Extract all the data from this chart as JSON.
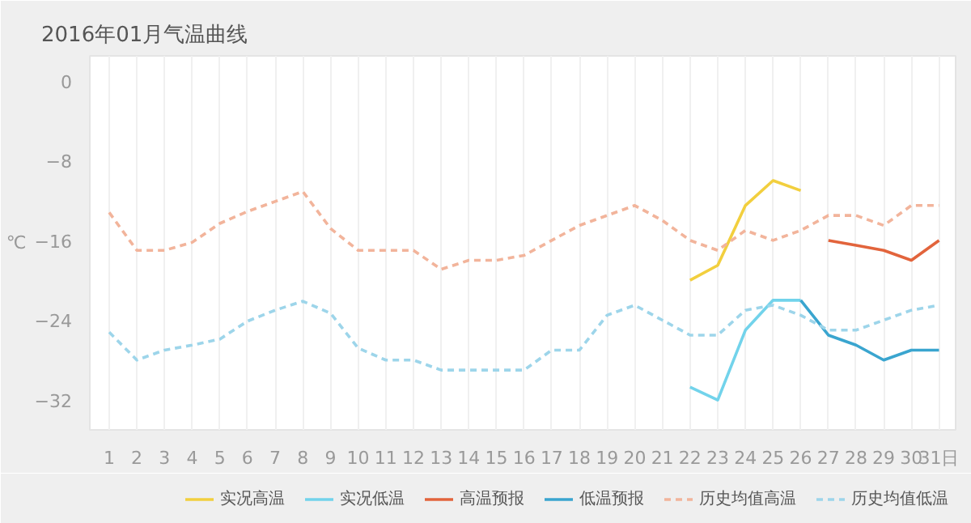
{
  "chart_data": {
    "type": "line",
    "title": "2016年01月气温曲线",
    "ylabel": "℃",
    "xlim": [
      0.3,
      31.6
    ],
    "ylim": [
      -35,
      2.5
    ],
    "xticks": [
      1,
      2,
      3,
      4,
      5,
      6,
      7,
      8,
      9,
      10,
      11,
      12,
      13,
      14,
      15,
      16,
      17,
      18,
      19,
      20,
      21,
      22,
      23,
      24,
      25,
      26,
      27,
      28,
      29,
      30,
      {
        "value": 31,
        "label": "31日"
      }
    ],
    "yticks": [
      0,
      -8,
      -16,
      -24,
      -32
    ],
    "grid": "x",
    "legend": "bottom",
    "marker": "none",
    "series": [
      {
        "name": "实况高温",
        "color": "#f2cf3e",
        "line_style": "solid",
        "x": [
          22,
          23,
          24,
          25,
          26
        ],
        "values": [
          -20,
          -18.5,
          -12.5,
          -10,
          -11
        ]
      },
      {
        "name": "实况低温",
        "color": "#72d3eb",
        "line_style": "solid",
        "x": [
          22,
          23,
          24,
          25,
          26
        ],
        "values": [
          -30.7,
          -32,
          -25,
          -22,
          -22
        ]
      },
      {
        "name": "高温预报",
        "color": "#e2643c",
        "line_style": "solid",
        "x": [
          27,
          28,
          29,
          30,
          31
        ],
        "values": [
          -16,
          -16.5,
          -17,
          -18,
          -16
        ]
      },
      {
        "name": "低温预报",
        "color": "#3aa5cf",
        "line_style": "solid",
        "x": [
          26,
          27,
          28,
          29,
          30,
          31
        ],
        "values": [
          -22,
          -25.5,
          -26.5,
          -28,
          -27,
          -27
        ]
      },
      {
        "name": "历史均值高温",
        "color": "#f2b49b",
        "line_style": "dashed",
        "x": [
          1,
          2,
          3,
          4,
          5,
          6,
          7,
          8,
          9,
          10,
          11,
          12,
          13,
          14,
          15,
          16,
          17,
          18,
          19,
          20,
          21,
          22,
          23,
          24,
          25,
          26,
          27,
          28,
          29,
          30,
          31
        ],
        "values": [
          -13.2,
          -17,
          -17,
          -16.2,
          -14.3,
          -13.1,
          -12.1,
          -11.1,
          -14.8,
          -17,
          -17,
          -17,
          -18.9,
          -18,
          -18,
          -17.5,
          -16,
          -14.5,
          -13.5,
          -12.5,
          -14,
          -16,
          -17,
          -15,
          -16,
          -15,
          -13.5,
          -13.5,
          -14.5,
          -12.5,
          -12.5
        ]
      },
      {
        "name": "历史均值低温",
        "color": "#9dd5ea",
        "line_style": "dashed",
        "x": [
          1,
          2,
          3,
          4,
          5,
          6,
          7,
          8,
          9,
          10,
          11,
          12,
          13,
          14,
          15,
          16,
          17,
          18,
          19,
          20,
          21,
          22,
          23,
          24,
          25,
          26,
          27,
          28,
          29,
          30,
          31
        ],
        "values": [
          -25.2,
          -28,
          -27,
          -26.5,
          -25.9,
          -24.1,
          -23,
          -22.1,
          -23.3,
          -26.8,
          -28,
          -28,
          -29,
          -29,
          -29,
          -29,
          -27,
          -27,
          -23.5,
          -22.5,
          -24,
          -25.5,
          -25.5,
          -23,
          -22.5,
          -23.5,
          -25,
          -25,
          -24,
          -23,
          -22.5
        ]
      }
    ]
  }
}
